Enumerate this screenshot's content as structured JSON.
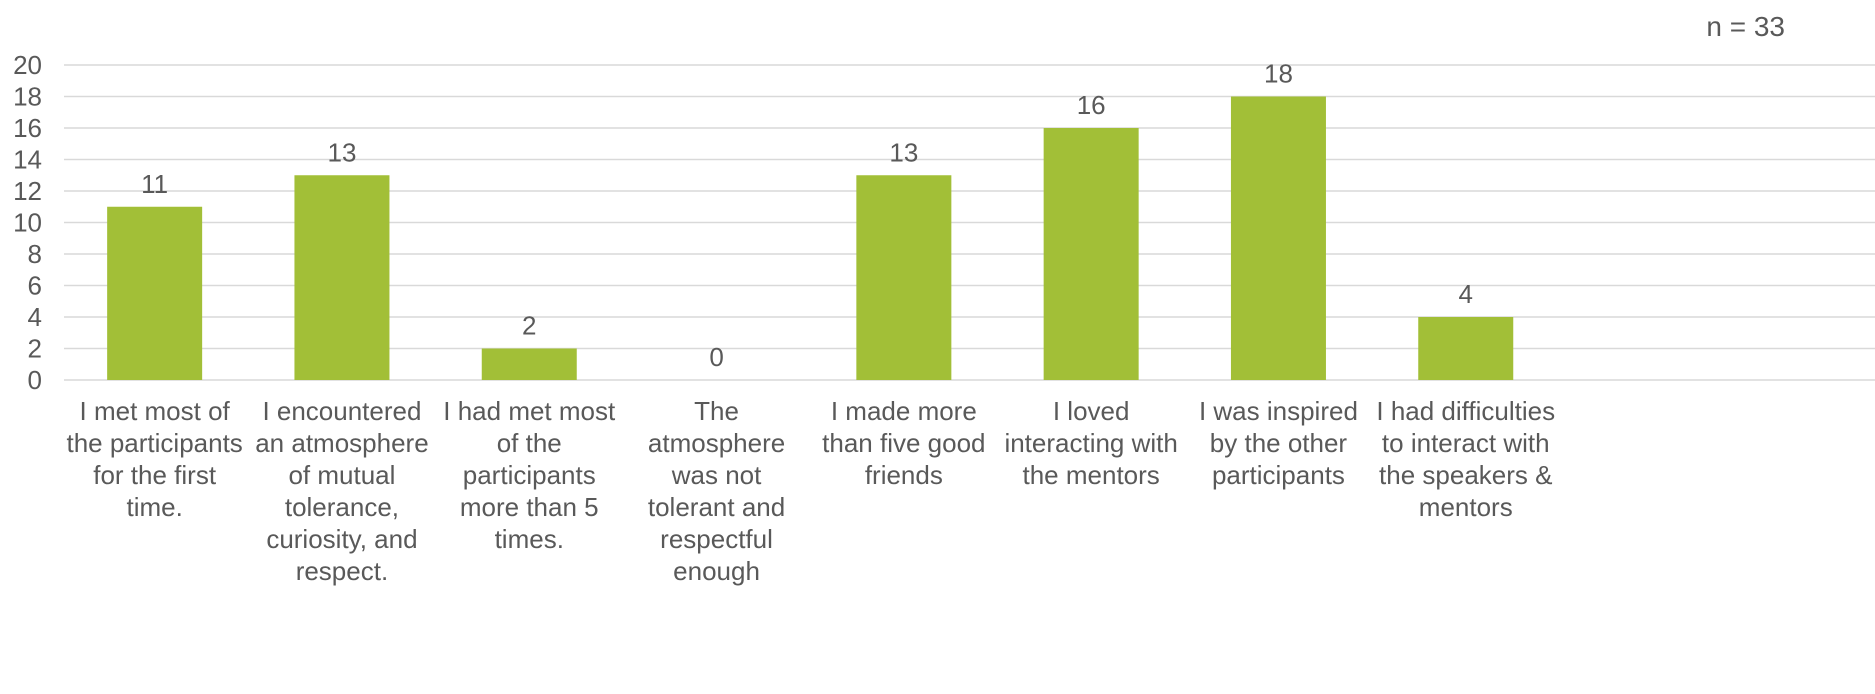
{
  "chart_data": {
    "type": "bar",
    "title": "",
    "xlabel": "",
    "ylabel": "",
    "ylim": [
      0,
      20
    ],
    "yticks": [
      "0",
      "2",
      "4",
      "6",
      "8",
      "10",
      "12",
      "14",
      "16",
      "18",
      "20"
    ],
    "grid": true,
    "legend": "none",
    "annotation": "n = 33",
    "bar_color": "#a2bf37",
    "categories": [
      [
        "I met most of",
        "the participants",
        "for the first",
        "time."
      ],
      [
        "I encountered",
        "an atmosphere",
        "of mutual",
        "tolerance,",
        "curiosity, and",
        "respect."
      ],
      [
        "I had met most",
        "of the",
        "participants",
        "more than 5",
        "times."
      ],
      [
        "The",
        "atmosphere",
        "was not",
        "tolerant and",
        "respectful",
        "enough"
      ],
      [
        "I made more",
        "than five good",
        "friends"
      ],
      [
        "I loved",
        "interacting with",
        "the mentors"
      ],
      [
        "I was inspired",
        "by the other",
        "participants"
      ],
      [
        "I had difficulties",
        "to interact with",
        "the speakers &",
        "mentors"
      ]
    ],
    "values": [
      11,
      13,
      2,
      0,
      13,
      16,
      18,
      4
    ],
    "value_labels": [
      "11",
      "13",
      "2",
      "0",
      "13",
      "16",
      "18",
      "4"
    ]
  }
}
